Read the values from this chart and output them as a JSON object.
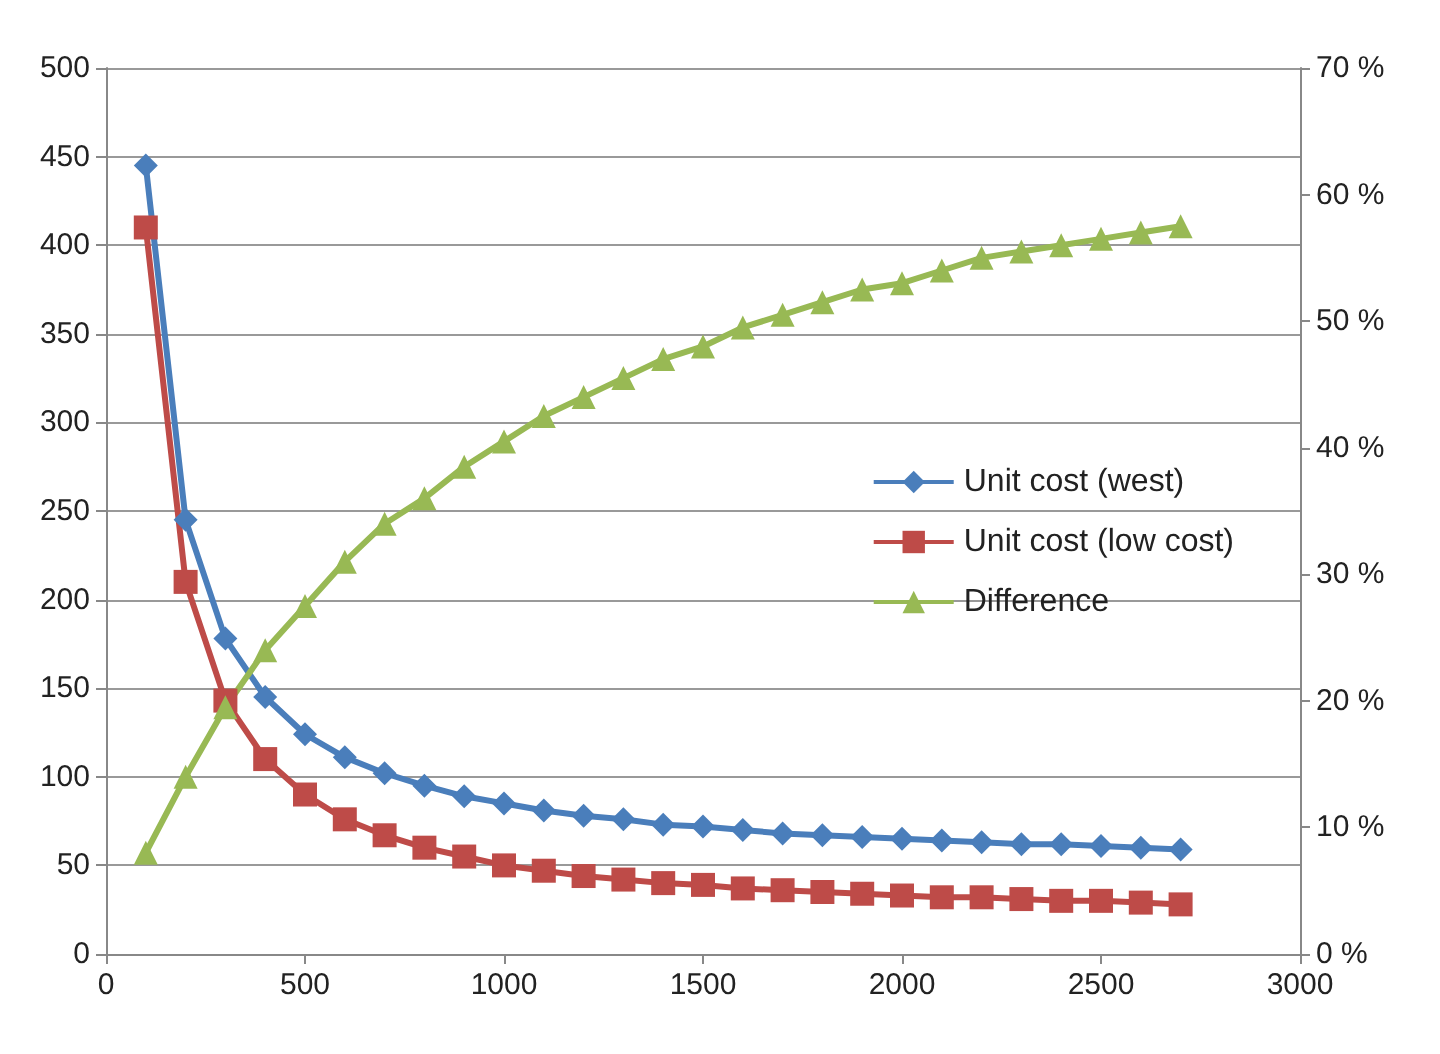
{
  "chart_data": {
    "type": "line",
    "x": [
      100,
      200,
      300,
      400,
      500,
      600,
      700,
      800,
      900,
      1000,
      1100,
      1200,
      1300,
      1400,
      1500,
      1600,
      1700,
      1800,
      1900,
      2000,
      2100,
      2200,
      2300,
      2400,
      2500,
      2600,
      2700
    ],
    "series": [
      {
        "name": "Unit cost (west)",
        "color": "#4a7ebb",
        "marker": "diamond",
        "values": [
          445,
          245,
          178,
          145,
          124,
          111,
          102,
          95,
          89,
          85,
          81,
          78,
          76,
          73,
          72,
          70,
          68,
          67,
          66,
          65,
          64,
          63,
          62,
          62,
          61,
          60,
          59
        ]
      },
      {
        "name": "Unit cost (low cost)",
        "color": "#be4b48",
        "marker": "square",
        "values": [
          410,
          210,
          143,
          110,
          90,
          76,
          67,
          60,
          55,
          50,
          47,
          44,
          42,
          40,
          39,
          37,
          36,
          35,
          34,
          33,
          32,
          32,
          31,
          30,
          30,
          29,
          28
        ]
      },
      {
        "name": "Difference",
        "color": "#98b954",
        "marker": "triangle",
        "axis": "y2",
        "values": [
          8,
          14,
          19.5,
          24,
          27.5,
          31,
          34,
          36,
          38.5,
          40.5,
          42.5,
          44,
          45.5,
          47,
          48,
          49.5,
          50.5,
          51.5,
          52.5,
          53,
          54,
          55,
          55.5,
          56,
          56.5,
          57,
          57.5
        ]
      }
    ],
    "xlim": [
      0,
      3000
    ],
    "xticks": [
      0,
      500,
      1000,
      1500,
      2000,
      2500,
      3000
    ],
    "ylim": [
      0,
      500
    ],
    "yticks": [
      0,
      50,
      100,
      150,
      200,
      250,
      300,
      350,
      400,
      450,
      500
    ],
    "y2lim": [
      0,
      70
    ],
    "y2ticks": [
      {
        "value": 0,
        "label": "0 %"
      },
      {
        "value": 10,
        "label": "10 %"
      },
      {
        "value": 20,
        "label": "20 %"
      },
      {
        "value": 30,
        "label": "30 %"
      },
      {
        "value": 40,
        "label": "40 %"
      },
      {
        "value": 50,
        "label": "50 %"
      },
      {
        "value": 60,
        "label": "60 %"
      },
      {
        "value": 70,
        "label": "70 %"
      }
    ],
    "grid": "y",
    "legend": "right",
    "line_style": "solid"
  }
}
